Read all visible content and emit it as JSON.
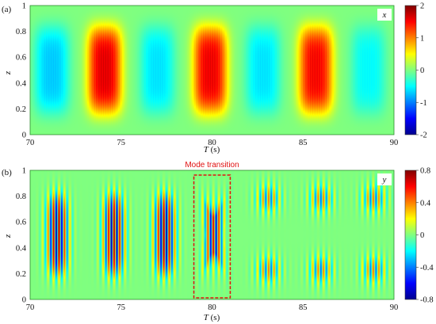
{
  "chart_data": [
    {
      "type": "heatmap",
      "panel_label": "(a)",
      "variable_label": "x",
      "xlabel_italic": "T",
      "xlabel_unit": " (s)",
      "ylabel": "z",
      "xlim": [
        70,
        90
      ],
      "ylim": [
        0,
        1
      ],
      "x_ticks": [
        "70",
        "75",
        "80",
        "85",
        "90"
      ],
      "y_ticks": [
        "0",
        "0.2",
        "0.4",
        "0.6",
        "0.8",
        "1"
      ],
      "colorbar": {
        "min": -2,
        "max": 2,
        "ticks": [
          "2",
          "1",
          "0",
          "-1",
          "-2"
        ]
      },
      "field_description": "alternating lobes centred at z=0.5",
      "lobes": [
        {
          "center": 71.2,
          "value": -0.7
        },
        {
          "center": 74.1,
          "value": 1.6
        },
        {
          "center": 77.0,
          "value": -0.6
        },
        {
          "center": 79.9,
          "value": 1.55
        },
        {
          "center": 82.8,
          "value": -0.6
        },
        {
          "center": 85.7,
          "value": 1.5
        },
        {
          "center": 88.6,
          "value": -0.5
        }
      ]
    },
    {
      "type": "heatmap",
      "panel_label": "(b)",
      "variable_label": "y",
      "xlabel_italic": "T",
      "xlabel_unit": " (s)",
      "ylabel": "z",
      "xlim": [
        70,
        90
      ],
      "ylim": [
        0,
        1
      ],
      "x_ticks": [
        "70",
        "75",
        "80",
        "85",
        "90"
      ],
      "y_ticks": [
        "0",
        "0.2",
        "0.4",
        "0.6",
        "0.8",
        "1"
      ],
      "colorbar": {
        "min": -0.8,
        "max": 0.8,
        "ticks": [
          "0.8",
          "0.4",
          "0",
          "-0.4",
          "-0.8"
        ]
      },
      "field_description": "high-frequency oscillating packets; single-lobe mode before transition, two-lobe mode after",
      "single_lobe_packets": [
        {
          "center": 71.5,
          "amplitude": 0.8
        },
        {
          "center": 74.6,
          "amplitude": 0.8
        },
        {
          "center": 77.4,
          "amplitude": 0.8
        }
      ],
      "transition_packet": {
        "center": 80.1,
        "amplitude": 0.7
      },
      "double_lobe_packets": [
        {
          "center": 83.1,
          "amplitude": 0.45
        },
        {
          "center": 86.0,
          "amplitude": 0.45
        },
        {
          "center": 88.9,
          "amplitude": 0.45
        }
      ],
      "annotation": {
        "text": "Mode transition",
        "x_range": [
          79.0,
          81.0
        ],
        "y_range": [
          0,
          1
        ]
      }
    }
  ]
}
